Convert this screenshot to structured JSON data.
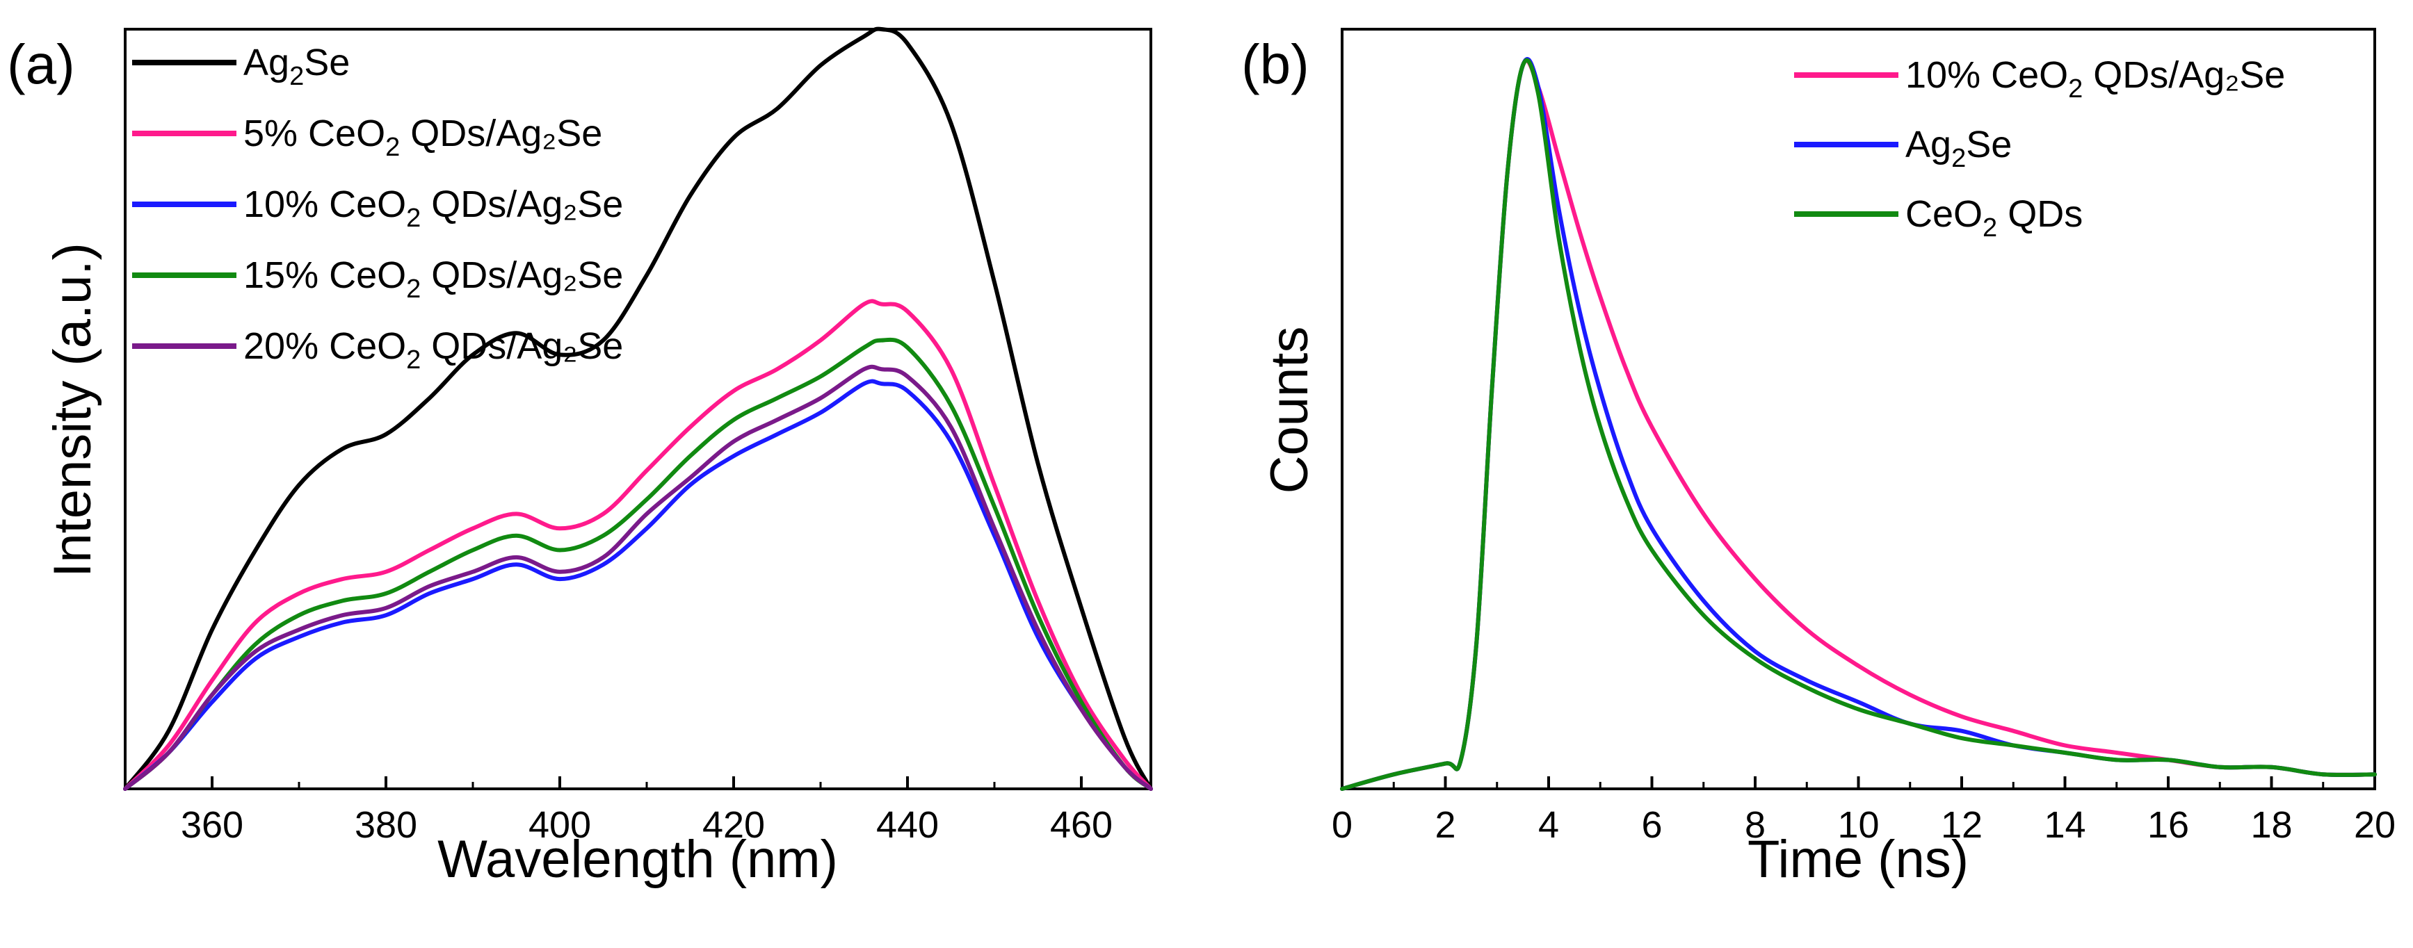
{
  "chart_data": [
    {
      "type": "line",
      "panel_label": "(a)",
      "xlabel": "Wavelength (nm)",
      "ylabel": "Intensity (a.u.)",
      "xlim": [
        350,
        468
      ],
      "ylim": [
        0,
        1.05
      ],
      "xticks": [
        360,
        380,
        400,
        420,
        440,
        460
      ],
      "x": [
        350,
        355,
        360,
        365,
        370,
        375,
        380,
        385,
        390,
        395,
        400,
        405,
        410,
        415,
        420,
        425,
        430,
        435,
        437,
        440,
        445,
        450,
        455,
        460,
        465,
        468
      ],
      "series": [
        {
          "name": "Ag",
          "sub": "2",
          "name_end": "Se",
          "color": "#000000",
          "values": [
            0.0,
            0.08,
            0.22,
            0.33,
            0.42,
            0.47,
            0.49,
            0.54,
            0.6,
            0.63,
            0.6,
            0.62,
            0.71,
            0.82,
            0.9,
            0.94,
            1.0,
            1.04,
            1.05,
            1.03,
            0.92,
            0.7,
            0.45,
            0.25,
            0.07,
            0.0
          ]
        },
        {
          "name": "5% CeO",
          "sub": "2",
          "name_end": " QDs/Ag₂Se",
          "color": "#ff1a8c",
          "values": [
            0.0,
            0.06,
            0.15,
            0.23,
            0.27,
            0.29,
            0.3,
            0.33,
            0.36,
            0.38,
            0.36,
            0.38,
            0.44,
            0.5,
            0.55,
            0.58,
            0.62,
            0.67,
            0.67,
            0.66,
            0.58,
            0.42,
            0.26,
            0.13,
            0.04,
            0.0
          ]
        },
        {
          "name": "10% CeO",
          "sub": "2",
          "name_end": " QDs/Ag₂Se",
          "color": "#1a1aff",
          "values": [
            0.0,
            0.05,
            0.12,
            0.18,
            0.21,
            0.23,
            0.24,
            0.27,
            0.29,
            0.31,
            0.29,
            0.31,
            0.36,
            0.42,
            0.46,
            0.49,
            0.52,
            0.56,
            0.56,
            0.55,
            0.48,
            0.35,
            0.21,
            0.11,
            0.03,
            0.0
          ]
        },
        {
          "name": "15% CeO",
          "sub": "2",
          "name_end": " QDs/Ag₂Se",
          "color": "#118a11",
          "values": [
            0.0,
            0.05,
            0.13,
            0.2,
            0.24,
            0.26,
            0.27,
            0.3,
            0.33,
            0.35,
            0.33,
            0.35,
            0.4,
            0.46,
            0.51,
            0.54,
            0.57,
            0.61,
            0.62,
            0.61,
            0.53,
            0.39,
            0.24,
            0.12,
            0.03,
            0.0
          ]
        },
        {
          "name": "20% CeO",
          "sub": "2",
          "name_end": " QDs/Ag₂Se",
          "color": "#7a1a8a",
          "values": [
            0.0,
            0.05,
            0.13,
            0.19,
            0.22,
            0.24,
            0.25,
            0.28,
            0.3,
            0.32,
            0.3,
            0.32,
            0.38,
            0.43,
            0.48,
            0.51,
            0.54,
            0.58,
            0.58,
            0.57,
            0.5,
            0.36,
            0.22,
            0.11,
            0.03,
            0.0
          ]
        }
      ]
    },
    {
      "type": "line",
      "panel_label": "(b)",
      "xlabel": "Time (ns)",
      "ylabel": "Counts",
      "xlim": [
        0,
        20
      ],
      "ylim": [
        0,
        1.05
      ],
      "xticks": [
        0,
        2,
        4,
        6,
        8,
        10,
        12,
        14,
        16,
        18,
        20
      ],
      "x": [
        0,
        1,
        2,
        2.3,
        2.6,
        2.9,
        3.2,
        3.5,
        3.8,
        4.2,
        4.6,
        5,
        5.5,
        6,
        7,
        8,
        9,
        10,
        11,
        12,
        13,
        14,
        15,
        16,
        17,
        18,
        19,
        20
      ],
      "series": [
        {
          "name": "10% CeO",
          "sub": "2",
          "name_end": " QDs/Ag₂Se",
          "color": "#ff1a8c",
          "values": [
            0.0,
            0.02,
            0.035,
            0.04,
            0.2,
            0.55,
            0.85,
            1.0,
            0.97,
            0.87,
            0.77,
            0.68,
            0.58,
            0.5,
            0.38,
            0.29,
            0.22,
            0.17,
            0.13,
            0.1,
            0.08,
            0.06,
            0.05,
            0.04,
            0.03,
            0.03,
            0.02,
            0.02
          ]
        },
        {
          "name": "Ag",
          "sub": "2",
          "name_end": "Se",
          "color": "#1a1aff",
          "values": [
            0.0,
            0.02,
            0.035,
            0.04,
            0.2,
            0.55,
            0.85,
            1.0,
            0.97,
            0.8,
            0.66,
            0.55,
            0.44,
            0.36,
            0.26,
            0.19,
            0.15,
            0.12,
            0.09,
            0.08,
            0.06,
            0.05,
            0.04,
            0.04,
            0.03,
            0.03,
            0.02,
            0.02
          ]
        },
        {
          "name": "CeO",
          "sub": "2",
          "name_end": " QDs",
          "color": "#118a11",
          "values": [
            0.0,
            0.02,
            0.035,
            0.04,
            0.2,
            0.55,
            0.85,
            1.0,
            0.96,
            0.76,
            0.61,
            0.5,
            0.4,
            0.33,
            0.24,
            0.18,
            0.14,
            0.11,
            0.09,
            0.07,
            0.06,
            0.05,
            0.04,
            0.04,
            0.03,
            0.03,
            0.02,
            0.02
          ]
        }
      ]
    }
  ]
}
